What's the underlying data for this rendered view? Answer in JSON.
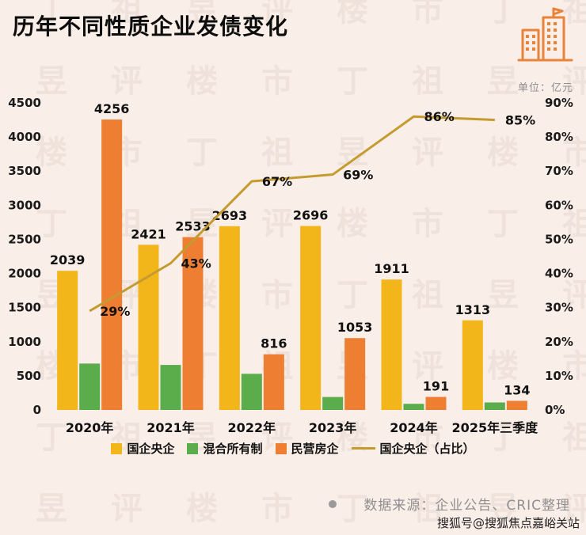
{
  "page": {
    "title": "历年不同性质企业发债变化",
    "unit_label": "单位：亿元",
    "source_text": "数据来源：企业公告、CRIC整理",
    "credit": "搜狐号@搜狐焦点嘉峪关站",
    "watermark_text": "丁祖昱评楼市"
  },
  "colors": {
    "background": "#FAEEE8",
    "title": "#0D0D0D",
    "soe": "#F2B51A",
    "mixed": "#5BAD4B",
    "private": "#EE7E31",
    "line": "#C49B2E",
    "axis_text": "#1A1A1A",
    "source_text": "#8F8F8F",
    "icon": "#E8833A"
  },
  "chart_data": {
    "type": "bar+line",
    "title": "历年不同性质企业发债变化",
    "unit": "亿元",
    "categories": [
      "2020年",
      "2021年",
      "2022年",
      "2023年",
      "2024年",
      "2025年三季度"
    ],
    "series": [
      {
        "name": "国企央企",
        "type": "bar",
        "color_key": "soe",
        "values": [
          2039,
          2421,
          2693,
          2696,
          1911,
          1313
        ],
        "labels": [
          "2039",
          "2421",
          "2693",
          "2696",
          "1911",
          "1313"
        ]
      },
      {
        "name": "混合所有制",
        "type": "bar",
        "color_key": "mixed",
        "values": [
          680,
          660,
          530,
          190,
          90,
          110
        ],
        "labels": [
          "",
          "",
          "",
          "",
          "",
          ""
        ]
      },
      {
        "name": "民营房企",
        "type": "bar",
        "color_key": "private",
        "values": [
          4256,
          2533,
          816,
          1053,
          191,
          134
        ],
        "labels": [
          "4256",
          "2533",
          "816",
          "1053",
          "191",
          "134"
        ]
      }
    ],
    "line_series": {
      "name": "国企央企（占比）",
      "axis": "right",
      "values": [
        29,
        43,
        67,
        69,
        86,
        85
      ],
      "labels": [
        "29%",
        "43%",
        "67%",
        "69%",
        "86%",
        "85%"
      ]
    },
    "left_axis": {
      "min": 0,
      "max": 4500,
      "step": 500,
      "ticks": [
        "0",
        "500",
        "1000",
        "1500",
        "2000",
        "2500",
        "3000",
        "3500",
        "4000",
        "4500"
      ]
    },
    "right_axis": {
      "min": 0,
      "max": 90,
      "step": 10,
      "ticks": [
        "0%",
        "10%",
        "20%",
        "30%",
        "40%",
        "50%",
        "60%",
        "70%",
        "80%",
        "90%"
      ]
    },
    "grid": false,
    "legend_position": "bottom"
  },
  "legend": [
    {
      "label": "国企央企",
      "swatch": "square",
      "color": "#F2B51A"
    },
    {
      "label": "混合所有制",
      "swatch": "square",
      "color": "#5BAD4B"
    },
    {
      "label": "民营房企",
      "swatch": "square",
      "color": "#EE7E31"
    },
    {
      "label": "国企央企（占比）",
      "swatch": "line",
      "color": "#C49B2E"
    }
  ]
}
